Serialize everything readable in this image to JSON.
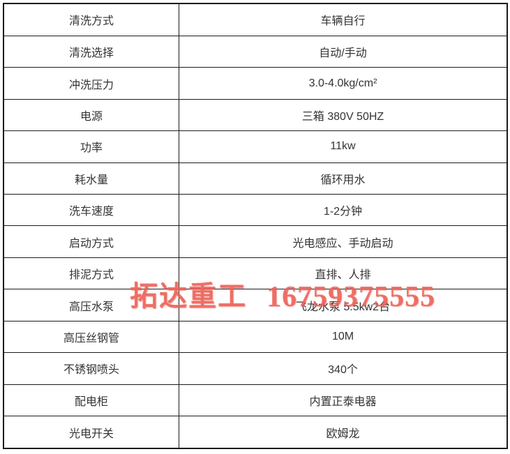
{
  "watermark": {
    "company": "拓达重工",
    "phone": "16759375555",
    "color": "#ee655b"
  },
  "table": {
    "border_color": "#1b1b1b",
    "text_color": "#333333",
    "rows": [
      {
        "label": "清洗方式",
        "value": "车辆自行"
      },
      {
        "label": "清洗选择",
        "value": "自动/手动"
      },
      {
        "label": "冲洗压力",
        "value": "3.0-4.0kg/cm²"
      },
      {
        "label": "电源",
        "value": "三箱 380V 50HZ"
      },
      {
        "label": "功率",
        "value": "11kw"
      },
      {
        "label": "耗水量",
        "value": "循环用水"
      },
      {
        "label": "洗车速度",
        "value": "1-2分钟"
      },
      {
        "label": "启动方式",
        "value": "光电感应、手动启动"
      },
      {
        "label": "排泥方式",
        "value": "直排、人排"
      },
      {
        "label": "高压水泵",
        "value": "飞龙水泵 5.5kw2台"
      },
      {
        "label": "高压丝钢管",
        "value": "10M"
      },
      {
        "label": "不锈钢喷头",
        "value": "340个"
      },
      {
        "label": "配电柜",
        "value": "内置正泰电器"
      },
      {
        "label": "光电开关",
        "value": "欧姆龙"
      }
    ]
  }
}
